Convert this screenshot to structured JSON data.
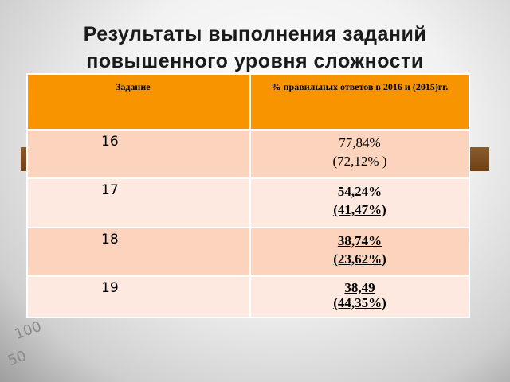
{
  "title": [
    "Результаты выполнения заданий",
    "повышенного уровня сложности"
  ],
  "table": {
    "header": [
      "Задание",
      "% правильных ответов в 2016 и (2015)гг."
    ],
    "rows": [
      [
        "16",
        [
          "77,84%",
          "(72,12% )"
        ]
      ],
      [
        "17",
        [
          "54,24%",
          "(41,47%)"
        ]
      ],
      [
        "18",
        [
          "38,74%",
          "(23,62%)"
        ]
      ],
      [
        "19",
        [
          "38,49",
          "(44,35%)"
        ]
      ]
    ]
  }
}
